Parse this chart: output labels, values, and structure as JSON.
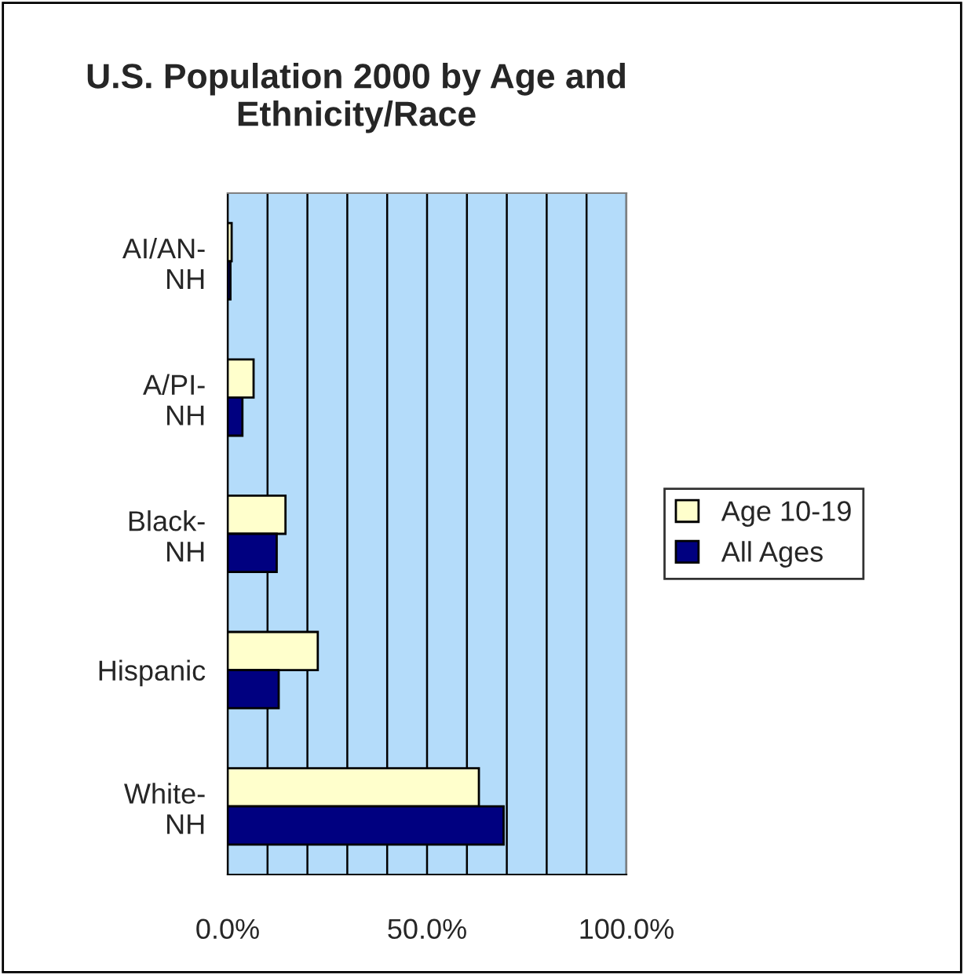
{
  "chart_data": {
    "type": "bar",
    "orientation": "horizontal",
    "title": "U.S. Population 2000 by Age and Ethnicity/Race",
    "categories": [
      "AI/AN-NH",
      "A/PI-NH",
      "Black-NH",
      "Hispanic",
      "White-NH"
    ],
    "series": [
      {
        "name": "Age 10-19",
        "color": "#ffffcc",
        "values": [
          1.0,
          6.5,
          14.5,
          22.6,
          63.0
        ]
      },
      {
        "name": "All Ages",
        "color": "#000080",
        "values": [
          0.7,
          3.7,
          12.3,
          12.8,
          69.2
        ]
      }
    ],
    "xlim": [
      0,
      100
    ],
    "xticks": [
      {
        "value": 0,
        "label": "0.0%"
      },
      {
        "value": 10,
        "label": null
      },
      {
        "value": 20,
        "label": null
      },
      {
        "value": 30,
        "label": null
      },
      {
        "value": 40,
        "label": null
      },
      {
        "value": 50,
        "label": "50.0%"
      },
      {
        "value": 60,
        "label": null
      },
      {
        "value": 70,
        "label": null
      },
      {
        "value": 80,
        "label": null
      },
      {
        "value": 90,
        "label": null
      },
      {
        "value": 100,
        "label": "100.0%"
      }
    ],
    "grid": "x",
    "legend": "right"
  }
}
